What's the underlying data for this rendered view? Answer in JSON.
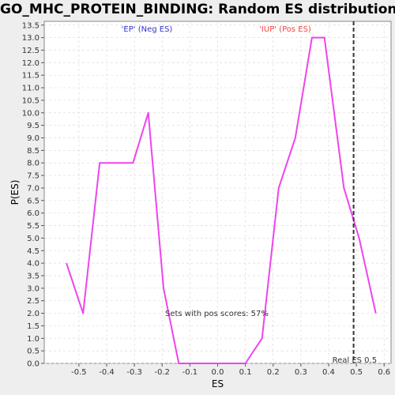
{
  "chart_data": {
    "type": "line",
    "title": "GO_MHC_PROTEIN_BINDING: Random ES distribution",
    "xlabel": "ES",
    "ylabel": "P(ES)",
    "xlim": [
      -0.625,
      0.625
    ],
    "ylim": [
      0.0,
      13.65
    ],
    "x_ticks": [
      "-0.5",
      "-0.4",
      "-0.3",
      "-0.2",
      "-0.1",
      "0.0",
      "0.1",
      "0.2",
      "0.3",
      "0.4",
      "0.5",
      "0.6"
    ],
    "x_tick_values": [
      -0.5,
      -0.4,
      -0.3,
      -0.2,
      -0.1,
      0.0,
      0.1,
      0.2,
      0.3,
      0.4,
      0.5,
      0.6
    ],
    "y_ticks": [
      "0.0",
      "0.5",
      "1.0",
      "1.5",
      "2.0",
      "2.5",
      "3.0",
      "3.5",
      "4.0",
      "4.5",
      "5.0",
      "5.5",
      "6.0",
      "6.5",
      "7.0",
      "7.5",
      "8.0",
      "8.5",
      "9.0",
      "9.5",
      "10.0",
      "10.5",
      "11.0",
      "11.5",
      "12.0",
      "12.5",
      "13.0",
      "13.5"
    ],
    "grid": true,
    "series": [
      {
        "color": "#ee44ee",
        "x": [
          -0.545,
          -0.485,
          -0.425,
          -0.385,
          -0.305,
          -0.25,
          -0.195,
          -0.14,
          -0.1,
          -0.05,
          0.0,
          0.1,
          0.16,
          0.22,
          0.28,
          0.34,
          0.385,
          0.455,
          0.51,
          0.57
        ],
        "y": [
          4.0,
          2.0,
          8.0,
          8.0,
          8.0,
          10.0,
          3.0,
          0.0,
          0.0,
          0.0,
          0.0,
          0.0,
          1.0,
          7.0,
          9.0,
          13.0,
          13.0,
          7.0,
          5.0,
          2.0
        ]
      }
    ],
    "annotations": {
      "neg_label": "'EP' (Neg ES)",
      "pos_label": "'IUP' (Pos ES)",
      "sets_text": "Sets with pos scores: 57%",
      "real_es_text": "Real ES 0.5",
      "real_es_value": 0.49,
      "neg_color": "#3333cc",
      "pos_color": "#ee4444"
    }
  }
}
